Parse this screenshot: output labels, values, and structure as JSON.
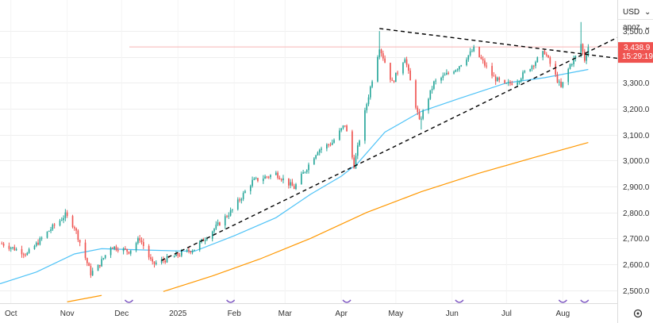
{
  "controls": {
    "currency": "USD",
    "currency_chevron": "chevron-down-icon",
    "scale_mode": "apoz",
    "scale_chevron": "chevron-down-icon",
    "settings_icon": "gear-icon"
  },
  "price_tag": {
    "price": "3,438.9",
    "countdown": "15:29:19"
  },
  "colors": {
    "up": "#26a69a",
    "down": "#ef5350",
    "ma_short": "#4fc3f7",
    "ma_long": "#ff9800",
    "trendline": "#000000",
    "last_price_line": "#f8b4b4",
    "event_marker": "#7e57c2",
    "grid": "#eeeeee"
  },
  "chart_data": {
    "type": "candlestick",
    "instrument_currency": "USD",
    "y_axis": {
      "range": [
        2450,
        3620
      ],
      "ticks": [
        "2,500.0",
        "2,600.0",
        "2,700.0",
        "2,800.0",
        "2,900.0",
        "3,000.0",
        "3,100.0",
        "3,200.0",
        "3,300.0",
        "3,400.0",
        "3,500.0"
      ],
      "tick_values": [
        2500,
        2600,
        2700,
        2800,
        2900,
        3000,
        3100,
        3200,
        3300,
        3400,
        3500
      ]
    },
    "x_axis": {
      "ticks": [
        "Oct",
        "Nov",
        "Dec",
        "2025",
        "Feb",
        "Mar",
        "Apr",
        "May",
        "Jun",
        "Jul",
        "Aug"
      ],
      "tick_dates": [
        "2024-10-01",
        "2024-11-01",
        "2024-12-01",
        "2025-01-01",
        "2025-02-01",
        "2025-03-01",
        "2025-04-01",
        "2025-05-01",
        "2025-06-01",
        "2025-07-01",
        "2025-08-01"
      ],
      "range": [
        "2024-09-25",
        "2025-08-31"
      ]
    },
    "last_price": 3438.9,
    "anchors": [
      [
        "2024-09-26",
        2680
      ],
      [
        "2024-10-10",
        2640
      ],
      [
        "2024-10-22",
        2730
      ],
      [
        "2024-10-31",
        2790
      ],
      [
        "2024-11-05",
        2745
      ],
      [
        "2024-11-14",
        2565
      ],
      [
        "2024-11-18",
        2590
      ],
      [
        "2024-11-25",
        2670
      ],
      [
        "2024-12-05",
        2650
      ],
      [
        "2024-12-11",
        2700
      ],
      [
        "2024-12-18",
        2600
      ],
      [
        "2024-12-26",
        2620
      ],
      [
        "2025-01-10",
        2660
      ],
      [
        "2025-01-20",
        2730
      ],
      [
        "2025-01-31",
        2810
      ],
      [
        "2025-02-11",
        2920
      ],
      [
        "2025-02-24",
        2950
      ],
      [
        "2025-03-06",
        2895
      ],
      [
        "2025-03-19",
        3040
      ],
      [
        "2025-03-27",
        3070
      ],
      [
        "2025-04-03",
        3140
      ],
      [
        "2025-04-08",
        2980
      ],
      [
        "2025-04-15",
        3220
      ],
      [
        "2025-04-22",
        3440
      ],
      [
        "2025-04-29",
        3300
      ],
      [
        "2025-05-06",
        3400
      ],
      [
        "2025-05-14",
        3150
      ],
      [
        "2025-05-22",
        3300
      ],
      [
        "2025-06-04",
        3360
      ],
      [
        "2025-06-13",
        3430
      ],
      [
        "2025-06-24",
        3320
      ],
      [
        "2025-06-30",
        3290
      ],
      [
        "2025-07-07",
        3310
      ],
      [
        "2025-07-22",
        3420
      ],
      [
        "2025-07-31",
        3280
      ],
      [
        "2025-08-05",
        3370
      ],
      [
        "2025-08-08",
        3400
      ],
      [
        "2025-08-11",
        3450
      ],
      [
        "2025-08-13",
        3390
      ],
      [
        "2025-08-15",
        3440
      ]
    ],
    "notable_wicks": [
      {
        "date": "2025-04-22",
        "high": 3500
      },
      {
        "date": "2025-08-11",
        "high": 3535
      },
      {
        "date": "2025-05-15",
        "low": 3120
      },
      {
        "date": "2025-04-08",
        "low": 2970
      }
    ],
    "moving_averages": [
      {
        "period": "short",
        "color": "#4fc3f7",
        "points": [
          [
            "2024-09-25",
            2525
          ],
          [
            "2024-10-15",
            2570
          ],
          [
            "2024-11-05",
            2640
          ],
          [
            "2024-11-20",
            2660
          ],
          [
            "2024-12-15",
            2655
          ],
          [
            "2025-01-10",
            2650
          ],
          [
            "2025-02-01",
            2710
          ],
          [
            "2025-02-24",
            2780
          ],
          [
            "2025-03-15",
            2870
          ],
          [
            "2025-04-01",
            2940
          ],
          [
            "2025-04-10",
            2990
          ],
          [
            "2025-04-25",
            3110
          ],
          [
            "2025-05-15",
            3190
          ],
          [
            "2025-06-05",
            3240
          ],
          [
            "2025-07-01",
            3300
          ],
          [
            "2025-07-22",
            3320
          ],
          [
            "2025-08-15",
            3352
          ]
        ]
      },
      {
        "period": "long",
        "color": "#ff9800",
        "points": [
          [
            "2024-12-24",
            2495
          ],
          [
            "2025-01-20",
            2555
          ],
          [
            "2025-02-15",
            2620
          ],
          [
            "2025-03-15",
            2700
          ],
          [
            "2025-04-15",
            2800
          ],
          [
            "2025-05-15",
            2880
          ],
          [
            "2025-06-15",
            2950
          ],
          [
            "2025-07-15",
            3010
          ],
          [
            "2025-08-15",
            3070
          ]
        ]
      },
      {
        "period": "long-prior",
        "color": "#ff9800",
        "points": [
          [
            "2024-11-01",
            2455
          ],
          [
            "2024-11-20",
            2480
          ]
        ]
      }
    ],
    "trendlines": [
      {
        "from": [
          "2024-12-23",
          2615
        ],
        "to": [
          "2025-08-31",
          3475
        ],
        "style": "dashed"
      },
      {
        "from": [
          "2025-04-22",
          3510
        ],
        "to": [
          "2025-08-31",
          3395
        ],
        "style": "dashed"
      }
    ],
    "event_markers": [
      "2024-12-05",
      "2025-01-30",
      "2025-04-04",
      "2025-06-05",
      "2025-08-01",
      "2025-08-13"
    ]
  }
}
